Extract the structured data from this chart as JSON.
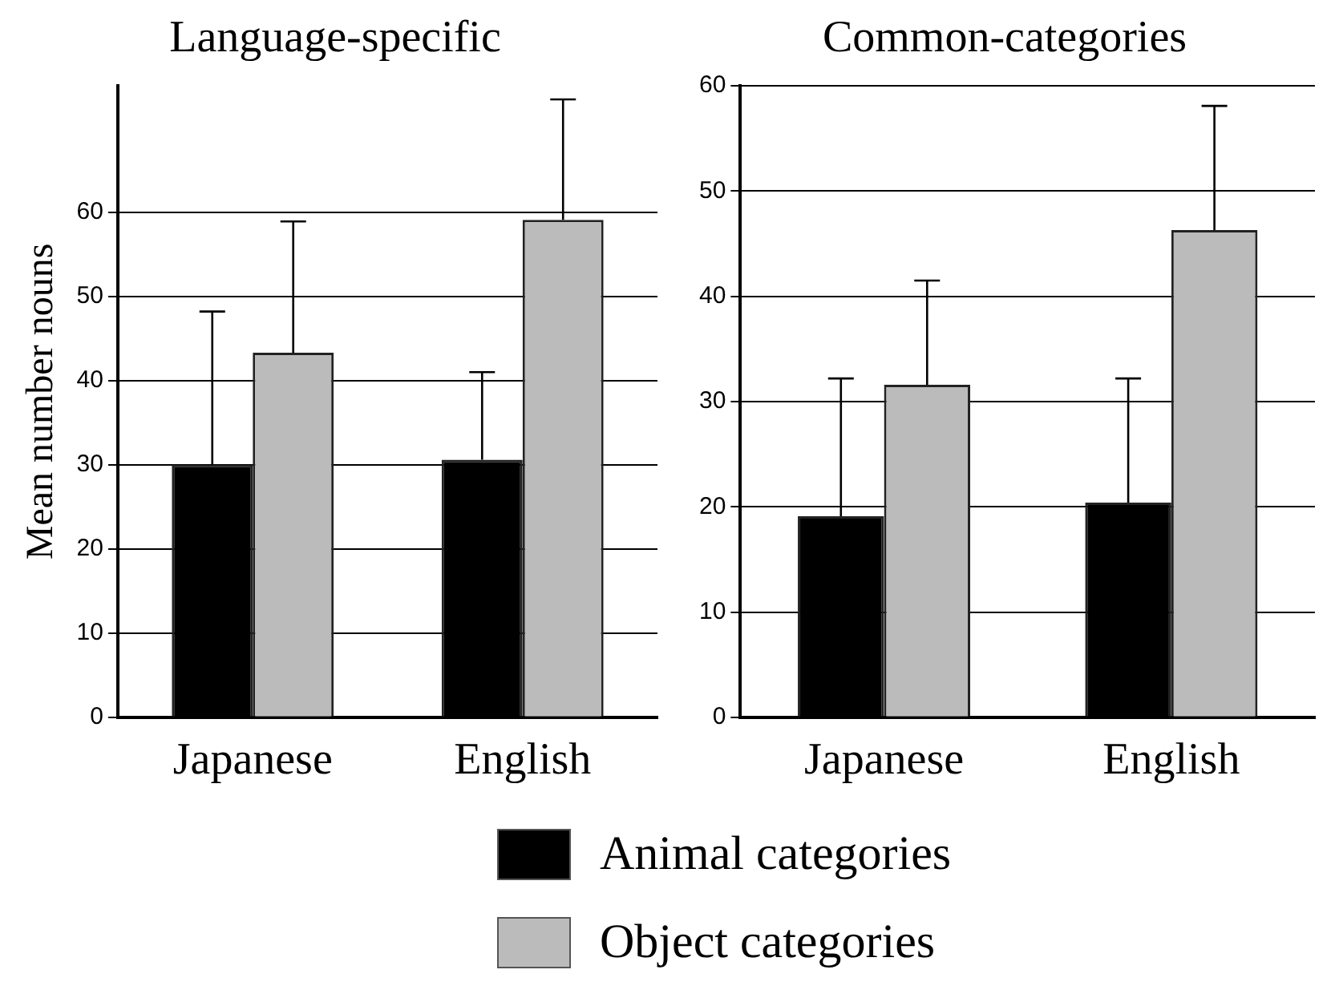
{
  "chart_data": [
    {
      "type": "bar",
      "title": "Language-specific",
      "ylabel": "Mean number nouns",
      "categories": [
        "Japanese",
        "English"
      ],
      "series": [
        {
          "name": "Animal categories",
          "color": "#000000",
          "values": [
            30,
            30.6
          ],
          "errors": [
            [
              30,
              48.2
            ],
            [
              30.6,
              41
            ]
          ]
        },
        {
          "name": "Object categories",
          "color": "#bbbbbb",
          "values": [
            43.3,
            59.1
          ],
          "errors": [
            [
              43.3,
              58.9
            ],
            [
              59.1,
              73.4
            ]
          ]
        }
      ],
      "ylim": [
        0,
        75
      ],
      "yticks": [
        0,
        10,
        20,
        30,
        40,
        50,
        60
      ],
      "grid": "y",
      "legend": "bottom"
    },
    {
      "type": "bar",
      "title": "Common-categories",
      "categories": [
        "Japanese",
        "English"
      ],
      "series": [
        {
          "color": "#000000",
          "values": [
            19.1,
            20.4
          ],
          "errors": [
            [
              19.1,
              32.2
            ],
            [
              20.4,
              32.2
            ]
          ]
        },
        {
          "color": "#bbbbbb",
          "values": [
            31.6,
            46.3
          ],
          "errors": [
            [
              31.6,
              41.5
            ],
            [
              46.3,
              58.1
            ]
          ]
        }
      ],
      "ylim": [
        0,
        60
      ],
      "yticks": [
        0,
        10,
        20,
        30,
        40,
        50,
        60
      ],
      "grid": "y"
    }
  ]
}
